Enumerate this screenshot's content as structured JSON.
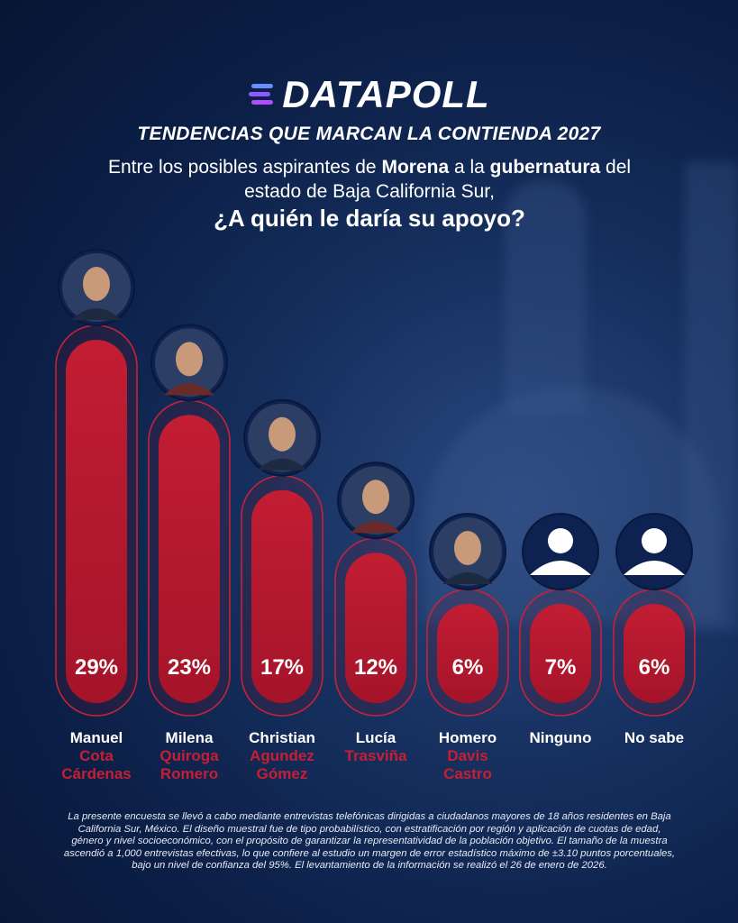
{
  "brand": {
    "name": "DATAPOLL"
  },
  "header": {
    "headline": "TENDENCIAS QUE MARCAN LA CONTIENDA 2027",
    "q_line1_a": "Entre los posibles aspirantes de ",
    "q_line1_b": "Morena",
    "q_line1_c": " a la ",
    "q_line1_d": "gubernatura",
    "q_line1_e": " del",
    "q_line2": "estado de Baja California Sur,",
    "q_line3": "¿A quién le daría su apoyo?"
  },
  "chart_data": {
    "type": "bar",
    "title": "¿A quién le daría su apoyo?",
    "categories": [
      "Manuel Cota Cárdenas",
      "Milena Quiroga Romero",
      "Christian Agundez Gómez",
      "Lucía Trasviña",
      "Homero Davis Castro",
      "Ninguno",
      "No sabe"
    ],
    "values": [
      29,
      23,
      17,
      12,
      6,
      7,
      6
    ],
    "value_labels": [
      "29%",
      "23%",
      "17%",
      "12%",
      "6%",
      "7%",
      "6%"
    ],
    "label_first": [
      "Manuel",
      "Milena",
      "Christian",
      "Lucía",
      "Homero",
      "Ninguno",
      "No sabe"
    ],
    "label_rest": [
      [
        "Cota",
        "Cárdenas"
      ],
      [
        "Quiroga",
        "Romero"
      ],
      [
        "Agundez",
        "Gómez"
      ],
      [
        "Trasviña"
      ],
      [
        "Davis",
        "Castro"
      ],
      [],
      []
    ],
    "unit": "%",
    "ylim": [
      0,
      29
    ]
  },
  "colors": {
    "bar": "#b5182e",
    "bar_outline": "#c4233a",
    "accent": "#c81e34",
    "background": "#0b1e45",
    "avatar_bg": "#0d2250"
  },
  "footnote": "La presente encuesta se llevó a cabo mediante entrevistas telefónicas dirigidas a ciudadanos mayores de 18 años residentes en Baja California Sur, México. El diseño muestral fue de tipo probabilístico, con estratificación por región y aplicación de cuotas de edad, género y nivel socioeconómico, con el propósito de garantizar la representatividad de la población objetivo. El tamaño de la muestra ascendió a 1,000 entrevistas efectivas, lo que confiere al estudio un margen de error estadístico máximo de ±3.10 puntos porcentuales, bajo un nivel de confianza del 95%. El levantamiento de la información se realizó el 26 de enero de 2026."
}
